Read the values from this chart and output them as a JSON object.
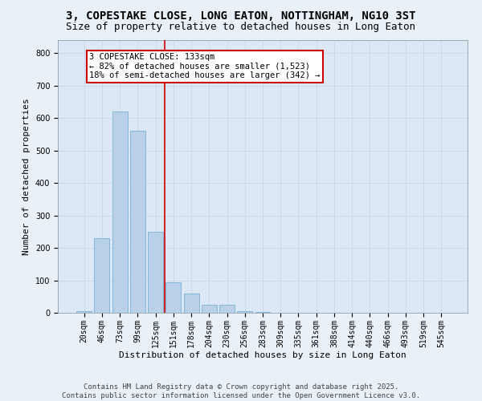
{
  "title1": "3, COPESTAKE CLOSE, LONG EATON, NOTTINGHAM, NG10 3ST",
  "title2": "Size of property relative to detached houses in Long Eaton",
  "xlabel": "Distribution of detached houses by size in Long Eaton",
  "ylabel": "Number of detached properties",
  "categories": [
    "20sqm",
    "46sqm",
    "73sqm",
    "99sqm",
    "125sqm",
    "151sqm",
    "178sqm",
    "204sqm",
    "230sqm",
    "256sqm",
    "283sqm",
    "309sqm",
    "335sqm",
    "361sqm",
    "388sqm",
    "414sqm",
    "440sqm",
    "466sqm",
    "493sqm",
    "519sqm",
    "545sqm"
  ],
  "values": [
    5,
    230,
    620,
    560,
    250,
    95,
    60,
    25,
    25,
    5,
    2,
    0,
    0,
    0,
    0,
    0,
    0,
    0,
    0,
    0,
    0
  ],
  "bar_color": "#b8d0e8",
  "bar_edge_color": "#7aafd4",
  "vline_x": 4.5,
  "vline_color": "#cc0000",
  "annotation_text": "3 COPESTAKE CLOSE: 133sqm\n← 82% of detached houses are smaller (1,523)\n18% of semi-detached houses are larger (342) →",
  "annotation_box_color": "#cc0000",
  "ylim": [
    0,
    840
  ],
  "yticks": [
    0,
    100,
    200,
    300,
    400,
    500,
    600,
    700,
    800
  ],
  "bg_color": "#dce8f5",
  "fig_bg_color": "#e8f0f8",
  "footer": "Contains HM Land Registry data © Crown copyright and database right 2025.\nContains public sector information licensed under the Open Government Licence v3.0.",
  "title_fontsize": 10,
  "subtitle_fontsize": 9,
  "axis_label_fontsize": 8,
  "tick_fontsize": 7,
  "annotation_fontsize": 7.5,
  "footer_fontsize": 6.5,
  "grid_color": "#c5d5e5"
}
